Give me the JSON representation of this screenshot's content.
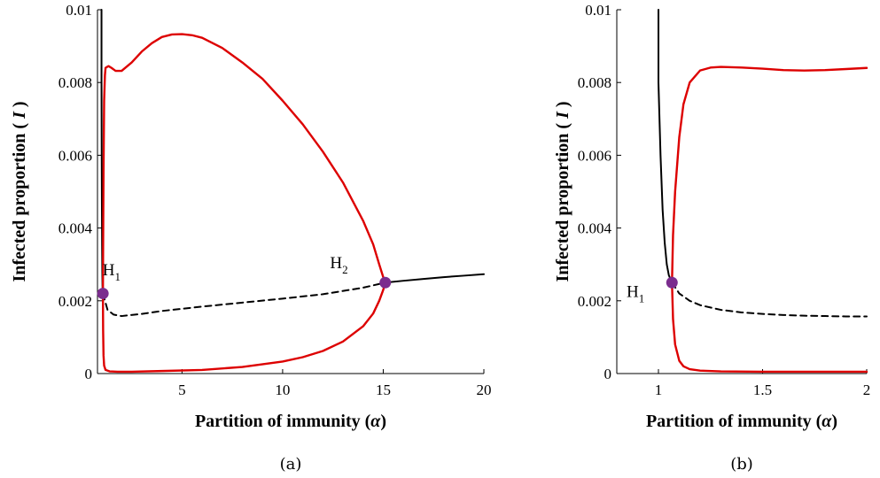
{
  "chart_data": [
    {
      "type": "line",
      "panel_label": "(a)",
      "xlabel": "Partition of immunity (α)",
      "ylabel": "Infected proportion ( I )",
      "xlim": [
        0.8,
        20
      ],
      "ylim": [
        0,
        0.01
      ],
      "xticks": [
        5,
        10,
        15,
        20
      ],
      "yticks": [
        0,
        0.002,
        0.004,
        0.006,
        0.008,
        0.01
      ],
      "xtick_labels": [
        "5",
        "10",
        "15",
        "20"
      ],
      "ytick_labels": [
        "0",
        "0.002",
        "0.004",
        "0.006",
        "0.008",
        "0.01"
      ],
      "grid": false,
      "series": [
        {
          "style": "stable-equilibrium",
          "color": "#000000",
          "dash": "solid",
          "segments": [
            {
              "x": [
                1.0,
                1.0,
                1.01,
                1.02,
                1.03,
                1.04,
                1.05,
                1.07
              ],
              "y": [
                0.01,
                0.008,
                0.006,
                0.0045,
                0.0035,
                0.0028,
                0.0024,
                0.0022
              ]
            },
            {
              "x": [
                15.1,
                16,
                17,
                18,
                19,
                20
              ],
              "y": [
                0.0025,
                0.00255,
                0.0026,
                0.00265,
                0.00269,
                0.00273
              ]
            }
          ]
        },
        {
          "style": "unstable-equilibrium",
          "color": "#000000",
          "dash": "dashed",
          "segments": [
            {
              "x": [
                1.07,
                1.3,
                1.6,
                2,
                3,
                4,
                5,
                6,
                8,
                10,
                12,
                14,
                15.1
              ],
              "y": [
                0.0022,
                0.00175,
                0.00162,
                0.00158,
                0.00164,
                0.00172,
                0.00178,
                0.00184,
                0.00195,
                0.00206,
                0.00218,
                0.00236,
                0.0025
              ]
            }
          ]
        },
        {
          "style": "periodic-orbit-extrema",
          "color": "#dd0000",
          "dash": "solid",
          "segments": [
            {
              "x": [
                1.07,
                1.08,
                1.1,
                1.13,
                1.17,
                1.2,
                1.25,
                1.35,
                1.5,
                1.7,
                2,
                2.5,
                3,
                3.5,
                4,
                4.5,
                5,
                5.5,
                6,
                7,
                8,
                9,
                10,
                11,
                12,
                13,
                14,
                14.5,
                14.8,
                15,
                15.1
              ],
              "y": [
                0.0022,
                0.0035,
                0.0055,
                0.0075,
                0.0082,
                0.0084,
                0.00842,
                0.00845,
                0.0084,
                0.00832,
                0.00832,
                0.00855,
                0.00885,
                0.00908,
                0.00925,
                0.00932,
                0.00933,
                0.0093,
                0.00923,
                0.00895,
                0.00855,
                0.0081,
                0.0075,
                0.00685,
                0.0061,
                0.00525,
                0.0042,
                0.00355,
                0.003,
                0.00265,
                0.0025
              ]
            },
            {
              "x": [
                1.07,
                1.08,
                1.1,
                1.13,
                1.2,
                1.4,
                1.8,
                2.5,
                4,
                6,
                8,
                10,
                11,
                12,
                13,
                14,
                14.5,
                14.8,
                15,
                15.1
              ],
              "y": [
                0.0022,
                0.0012,
                0.0005,
                0.00022,
                0.0001,
                6e-05,
                5e-05,
                5e-05,
                7e-05,
                0.0001,
                0.00018,
                0.00033,
                0.00045,
                0.00062,
                0.00088,
                0.0013,
                0.00165,
                0.002,
                0.0023,
                0.0025
              ]
            }
          ]
        }
      ],
      "points": [
        {
          "name": "H",
          "sub": "1",
          "x": 1.07,
          "y": 0.0022,
          "color": "#7b2d8e",
          "label_x": 1.5,
          "label_y": 0.0027
        },
        {
          "name": "H",
          "sub": "2",
          "x": 15.1,
          "y": 0.0025,
          "color": "#7b2d8e",
          "label_x": 12.8,
          "label_y": 0.0029
        }
      ]
    },
    {
      "type": "line",
      "panel_label": "(b)",
      "xlabel": "Partition of immunity (α)",
      "ylabel": "Infected proportion ( I )",
      "xlim": [
        0.8,
        2
      ],
      "ylim": [
        0,
        0.01
      ],
      "xticks": [
        1,
        1.5,
        2
      ],
      "yticks": [
        0,
        0.002,
        0.004,
        0.006,
        0.008,
        0.01
      ],
      "xtick_labels": [
        "1",
        "1.5",
        "2"
      ],
      "ytick_labels": [
        "0",
        "0.002",
        "0.004",
        "0.006",
        "0.008",
        "0.01"
      ],
      "grid": false,
      "series": [
        {
          "style": "stable-equilibrium",
          "color": "#000000",
          "dash": "solid",
          "segments": [
            {
              "x": [
                1.0,
                1.0,
                1.01,
                1.02,
                1.03,
                1.04,
                1.05,
                1.065
              ],
              "y": [
                0.01,
                0.008,
                0.006,
                0.0045,
                0.0036,
                0.003,
                0.0027,
                0.0025
              ]
            }
          ]
        },
        {
          "style": "unstable-equilibrium",
          "color": "#000000",
          "dash": "dashed",
          "segments": [
            {
              "x": [
                1.065,
                1.1,
                1.15,
                1.2,
                1.3,
                1.4,
                1.5,
                1.6,
                1.7,
                1.8,
                1.9,
                2.0
              ],
              "y": [
                0.0025,
                0.0022,
                0.002,
                0.00188,
                0.00175,
                0.00168,
                0.00164,
                0.00161,
                0.00159,
                0.00158,
                0.00157,
                0.00157
              ]
            }
          ]
        },
        {
          "style": "periodic-orbit-extrema",
          "color": "#dd0000",
          "dash": "solid",
          "segments": [
            {
              "x": [
                1.065,
                1.07,
                1.08,
                1.1,
                1.12,
                1.15,
                1.2,
                1.25,
                1.3,
                1.4,
                1.5,
                1.6,
                1.7,
                1.8,
                1.9,
                2.0
              ],
              "y": [
                0.0025,
                0.0038,
                0.005,
                0.0065,
                0.0074,
                0.008,
                0.00833,
                0.00841,
                0.00843,
                0.00841,
                0.00838,
                0.00834,
                0.00833,
                0.00834,
                0.00837,
                0.0084
              ]
            },
            {
              "x": [
                1.065,
                1.07,
                1.08,
                1.1,
                1.12,
                1.15,
                1.2,
                1.3,
                1.5,
                1.7,
                2.0
              ],
              "y": [
                0.0025,
                0.0015,
                0.0008,
                0.00035,
                0.0002,
                0.00012,
                8e-05,
                6e-05,
                5e-05,
                5e-05,
                5e-05
              ]
            }
          ]
        }
      ],
      "points": [
        {
          "name": "H",
          "sub": "1",
          "x": 1.065,
          "y": 0.0025,
          "color": "#7b2d8e",
          "label_x": 0.89,
          "label_y": 0.0021
        }
      ]
    }
  ]
}
